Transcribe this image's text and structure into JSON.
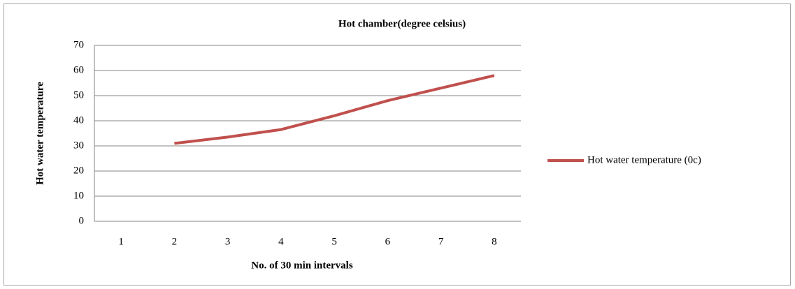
{
  "chart_data": {
    "type": "line",
    "title": "Hot chamber(degree celsius)",
    "x_label": "No. of 30 min intervals",
    "y_label": "Hot water temperature",
    "categories": [
      "1",
      "2",
      "3",
      "4",
      "5",
      "6",
      "7",
      "8"
    ],
    "series": [
      {
        "name": "Hot water temperature (0c)",
        "color": "#c0504d",
        "values": [
          null,
          31,
          33.5,
          36.5,
          42,
          48,
          53,
          58
        ]
      }
    ],
    "ylim": [
      0,
      70
    ],
    "yticks": [
      0,
      10,
      20,
      30,
      40,
      50,
      60,
      70
    ],
    "grid": true,
    "legend": "right"
  }
}
